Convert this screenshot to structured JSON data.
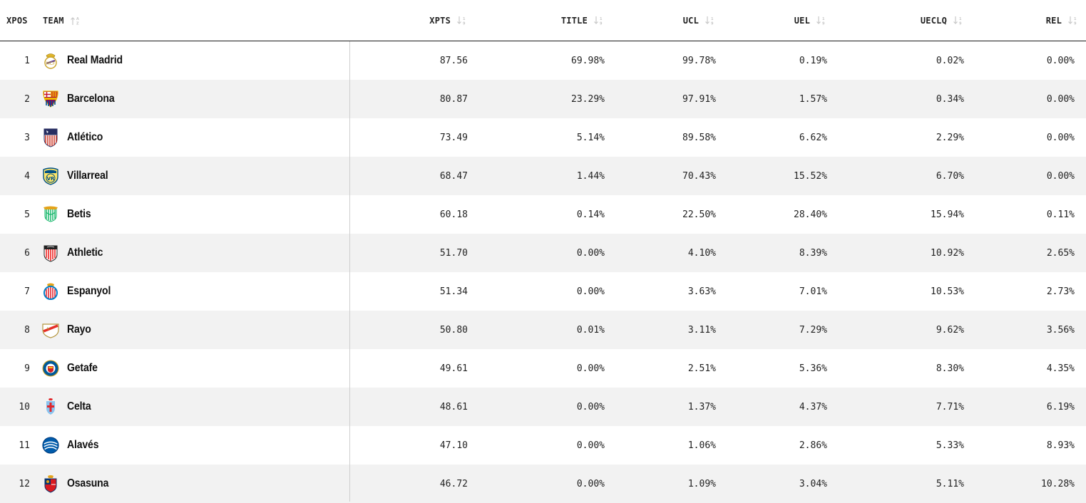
{
  "headers": {
    "pos": "XPOS",
    "team": "TEAM",
    "xpts": "XPTS",
    "title": "TITLE",
    "ucl": "UCL",
    "uel": "UEL",
    "ueclq": "UECLQ",
    "rel": "REL"
  },
  "rows": [
    {
      "pos": "1",
      "team": "Real Madrid",
      "crest": "real-madrid-crest-icon",
      "xpts": "87.56",
      "title": "69.98%",
      "ucl": "99.78%",
      "uel": "0.19%",
      "ueclq": "0.02%",
      "rel": "0.00%"
    },
    {
      "pos": "2",
      "team": "Barcelona",
      "crest": "barcelona-crest-icon",
      "xpts": "80.87",
      "title": "23.29%",
      "ucl": "97.91%",
      "uel": "1.57%",
      "ueclq": "0.34%",
      "rel": "0.00%"
    },
    {
      "pos": "3",
      "team": "Atlético",
      "crest": "atletico-crest-icon",
      "xpts": "73.49",
      "title": "5.14%",
      "ucl": "89.58%",
      "uel": "6.62%",
      "ueclq": "2.29%",
      "rel": "0.00%"
    },
    {
      "pos": "4",
      "team": "Villarreal",
      "crest": "villarreal-crest-icon",
      "xpts": "68.47",
      "title": "1.44%",
      "ucl": "70.43%",
      "uel": "15.52%",
      "ueclq": "6.70%",
      "rel": "0.00%"
    },
    {
      "pos": "5",
      "team": "Betis",
      "crest": "betis-crest-icon",
      "xpts": "60.18",
      "title": "0.14%",
      "ucl": "22.50%",
      "uel": "28.40%",
      "ueclq": "15.94%",
      "rel": "0.11%"
    },
    {
      "pos": "6",
      "team": "Athletic",
      "crest": "athletic-crest-icon",
      "xpts": "51.70",
      "title": "0.00%",
      "ucl": "4.10%",
      "uel": "8.39%",
      "ueclq": "10.92%",
      "rel": "2.65%"
    },
    {
      "pos": "7",
      "team": "Espanyol",
      "crest": "espanyol-crest-icon",
      "xpts": "51.34",
      "title": "0.00%",
      "ucl": "3.63%",
      "uel": "7.01%",
      "ueclq": "10.53%",
      "rel": "2.73%"
    },
    {
      "pos": "8",
      "team": "Rayo",
      "crest": "rayo-crest-icon",
      "xpts": "50.80",
      "title": "0.01%",
      "ucl": "3.11%",
      "uel": "7.29%",
      "ueclq": "9.62%",
      "rel": "3.56%"
    },
    {
      "pos": "9",
      "team": "Getafe",
      "crest": "getafe-crest-icon",
      "xpts": "49.61",
      "title": "0.00%",
      "ucl": "2.51%",
      "uel": "5.36%",
      "ueclq": "8.30%",
      "rel": "4.35%"
    },
    {
      "pos": "10",
      "team": "Celta",
      "crest": "celta-crest-icon",
      "xpts": "48.61",
      "title": "0.00%",
      "ucl": "1.37%",
      "uel": "4.37%",
      "ueclq": "7.71%",
      "rel": "6.19%"
    },
    {
      "pos": "11",
      "team": "Alavés",
      "crest": "alaves-crest-icon",
      "xpts": "47.10",
      "title": "0.00%",
      "ucl": "1.06%",
      "uel": "2.86%",
      "ueclq": "5.33%",
      "rel": "8.93%"
    },
    {
      "pos": "12",
      "team": "Osasuna",
      "crest": "osasuna-crest-icon",
      "xpts": "46.72",
      "title": "0.00%",
      "ucl": "1.09%",
      "uel": "3.04%",
      "ueclq": "5.11%",
      "rel": "10.28%"
    }
  ],
  "colors": {
    "header_border": "#1a1a1a",
    "row_alt_bg": "#f2f2f2",
    "divider": "#cfcfcf",
    "sort_icon": "#c8c8c8"
  }
}
